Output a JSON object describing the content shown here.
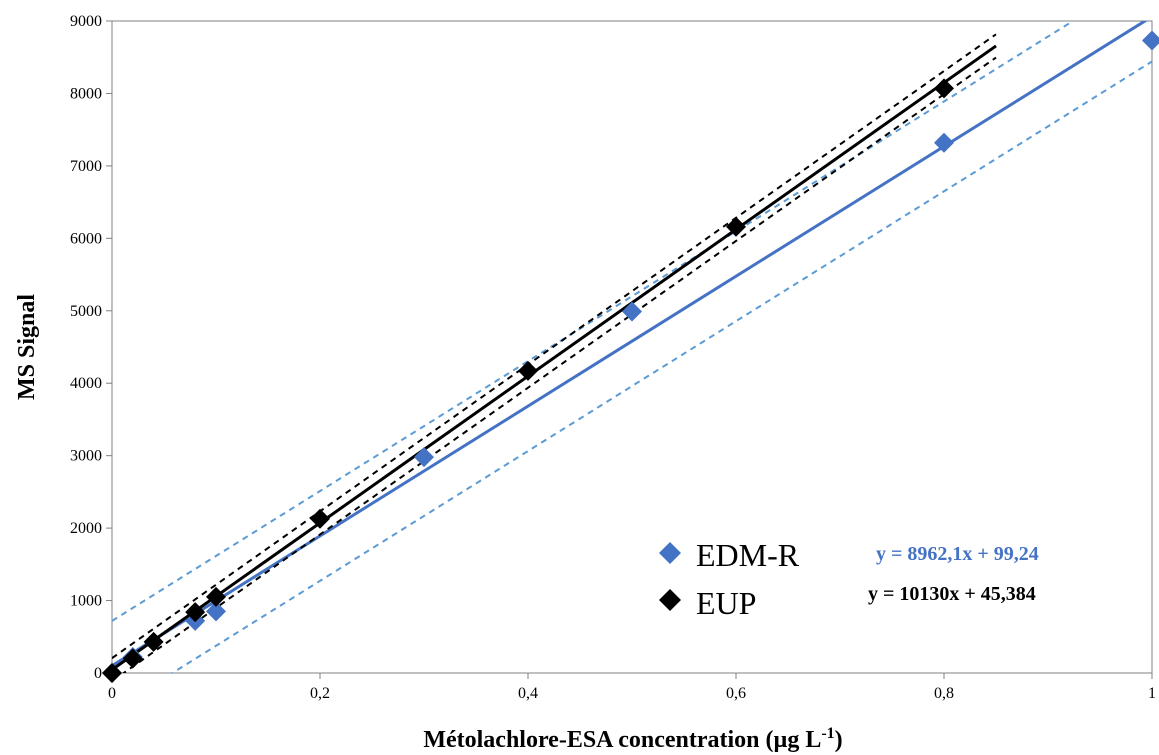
{
  "chart_data": {
    "type": "scatter",
    "xlabel": "Métolachlore-ESA concentration (µg L",
    "xlabel_sup": "-1",
    "xlabel_end": ")",
    "ylabel": "MS Signal",
    "xlim": [
      0,
      1
    ],
    "ylim": [
      0,
      9000
    ],
    "x_ticks": [
      0,
      0.2,
      0.4,
      0.6,
      0.8,
      1
    ],
    "x_tick_labels": [
      "0",
      "0,2",
      "0,4",
      "0,6",
      "0,8",
      "1"
    ],
    "y_ticks": [
      0,
      1000,
      2000,
      3000,
      4000,
      5000,
      6000,
      7000,
      8000,
      9000
    ],
    "y_tick_labels": [
      "0",
      "1000",
      "2000",
      "3000",
      "4000",
      "5000",
      "6000",
      "7000",
      "8000",
      "9000"
    ],
    "grid": false,
    "legend_position": "bottom-right",
    "series": [
      {
        "name": "EDM-R",
        "color": "#4472C4",
        "marker": "diamond",
        "x": [
          0,
          0.02,
          0.08,
          0.1,
          0.3,
          0.5,
          0.8,
          1.0
        ],
        "y": [
          0,
          220,
          720,
          850,
          2980,
          4990,
          7320,
          8730
        ],
        "fit": {
          "slope": 8962.1,
          "intercept": 99.24,
          "equation": "y = 8962,1x + 99,24",
          "x_range": [
            0,
            1.0
          ]
        },
        "band_offset": 620,
        "band_color": "#5B9BD5"
      },
      {
        "name": "EUP",
        "color": "#000000",
        "marker": "diamond",
        "x": [
          0,
          0.02,
          0.04,
          0.08,
          0.1,
          0.2,
          0.4,
          0.6,
          0.8
        ],
        "y": [
          0,
          200,
          430,
          840,
          1050,
          2130,
          4170,
          6160,
          8070
        ],
        "fit": {
          "slope": 10130,
          "intercept": 45.384,
          "equation": "y = 10130x + 45,384",
          "x_range": [
            0,
            0.85
          ]
        },
        "band_offset": 160,
        "band_color": "#000000"
      }
    ]
  }
}
